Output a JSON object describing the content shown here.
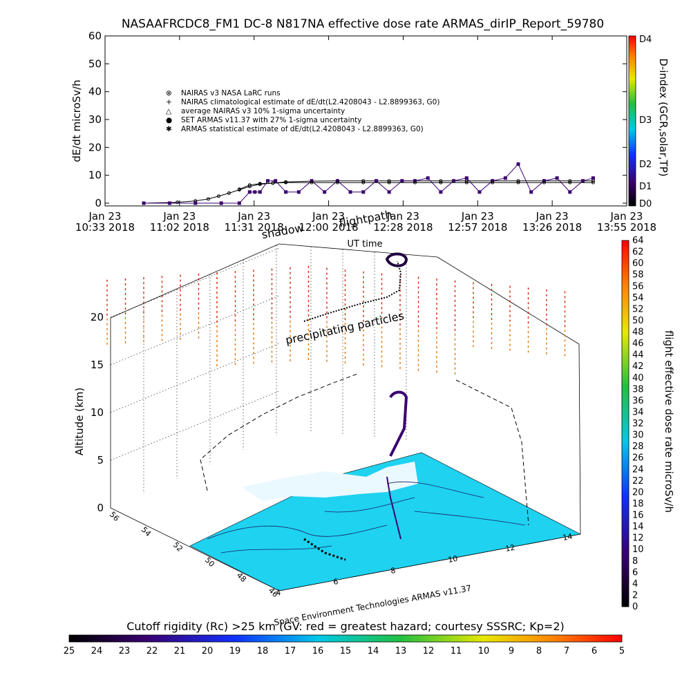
{
  "title": "NASAAFRCDC8_FM1 DC-8    N817NA effective dose rate ARMAS_dirIP_Report_59780",
  "chart_data": [
    {
      "type": "scatter",
      "ylabel": "dE/dt microSv/h",
      "xlabel": "UT time",
      "ylim": [
        0,
        60
      ],
      "yticks": [
        "0",
        "10",
        "20",
        "30",
        "40",
        "50",
        "60"
      ],
      "xticks": [
        {
          "top": "Jan 23",
          "bottom": "10:33 2018"
        },
        {
          "top": "Jan 23",
          "bottom": "11:02 2018"
        },
        {
          "top": "Jan 23",
          "bottom": "11:31 2018"
        },
        {
          "top": "Jan 23",
          "bottom": "12:00 2018"
        },
        {
          "top": "Jan 23",
          "bottom": "12:28 2018"
        },
        {
          "top": "Jan 23",
          "bottom": "12:57 2018"
        },
        {
          "top": "Jan 23",
          "bottom": "13:26 2018"
        },
        {
          "top": "Jan 23",
          "bottom": "13:55 2018"
        }
      ],
      "xrange_minutes": [
        0,
        202
      ],
      "legend_placement": "upper-left",
      "legend": [
        "NAIRAS v3 NASA LaRC runs",
        "NAIRAS climatological estimate of dE/dt(L2.4208043 - L2.8899363, G0)",
        "average NAIRAS v3 10% 1-sigma uncertainty",
        "SET ARMAS v11.37 with 27% 1-sigma uncertainty",
        "ARMAS statistical estimate of dE/dt(L2.4208043 - L2.8899363, G0)"
      ],
      "series": [
        {
          "name": "NAIRAS v3 NASA LaRC runs",
          "color": "#000000",
          "x": [
            15,
            28,
            35,
            40,
            44,
            48,
            52,
            56,
            60,
            65,
            70,
            80,
            90,
            100,
            110,
            120,
            130,
            140,
            150,
            160,
            170,
            180,
            189
          ],
          "y": [
            0,
            0.3,
            0.8,
            1.5,
            2.5,
            3.6,
            4.8,
            6.0,
            6.8,
            7.2,
            7.6,
            7.9,
            8.0,
            8.0,
            8.0,
            8.0,
            8.0,
            8.0,
            8.0,
            8.0,
            8.0,
            8.0,
            8.0
          ]
        },
        {
          "name": "SET ARMAS v11.37 with 27% 1-sigma uncertainty",
          "color": "#3a0070",
          "x": [
            15,
            25,
            35,
            45,
            52,
            56,
            58,
            60,
            63,
            66,
            70,
            75,
            80,
            85,
            90,
            95,
            100,
            105,
            110,
            115,
            120,
            125,
            130,
            135,
            140,
            145,
            150,
            155,
            160,
            165,
            170,
            175,
            180,
            185,
            189
          ],
          "y": [
            0,
            0,
            0,
            0,
            0,
            4,
            4,
            4,
            8,
            8,
            4,
            4,
            8,
            4,
            8,
            4,
            4,
            8,
            4,
            8,
            8,
            9,
            4,
            8,
            9,
            4,
            8,
            9,
            14,
            4,
            8,
            9,
            4,
            8,
            9
          ]
        },
        {
          "name": "ARMAS statistical estimate of dE/dt(L2.4208043 - L2.8899363, G0)",
          "color": "#000000",
          "x": [
            52,
            56,
            60,
            65,
            70,
            80,
            90,
            100,
            110,
            120,
            130,
            140,
            150,
            160,
            170,
            180,
            189
          ],
          "y": [
            5,
            6.5,
            7,
            7.2,
            7.4,
            7.4,
            7.4,
            7.4,
            7.4,
            7.4,
            7.4,
            7.4,
            7.4,
            7.4,
            7.4,
            7.4,
            7.4
          ]
        }
      ],
      "dindex": {
        "label": "D-index (GCR,solar,TP)",
        "ticks": [
          "D0",
          "D1",
          "D2",
          "D3",
          "D4"
        ],
        "colors": [
          "#000000",
          "#3a0070",
          "#1030ff",
          "#00c8e8",
          "#20c040",
          "#e8e800",
          "#ff8000",
          "#ff0000"
        ]
      }
    },
    {
      "type": "scatter3d",
      "zlabel": "Altitude (km)",
      "zlim": [
        0,
        20
      ],
      "zticks": [
        "0",
        "5",
        "10",
        "15",
        "20"
      ],
      "lat_ticks": [
        "46",
        "48",
        "50",
        "52",
        "54",
        "56"
      ],
      "lon_ticks": [
        "4",
        "6",
        "8",
        "10",
        "12",
        "14"
      ],
      "annotations": [
        "flightpath",
        "shadow",
        "precipitating particles"
      ],
      "credit": "Space Environment Technologies ARMAS v11.37",
      "colorbar": {
        "label": "flight effective dose rate microSv/h",
        "range": [
          0,
          64
        ],
        "ticks": [
          "0",
          "2",
          "4",
          "6",
          "8",
          "10",
          "12",
          "14",
          "16",
          "18",
          "20",
          "22",
          "24",
          "26",
          "28",
          "30",
          "32",
          "34",
          "36",
          "38",
          "40",
          "42",
          "44",
          "46",
          "48",
          "50",
          "52",
          "54",
          "56",
          "58",
          "60",
          "62",
          "64"
        ]
      }
    },
    {
      "type": "colorbar",
      "title": "Cutoff rigidity (Rc) >25 km (GV: red = greatest hazard; courtesy SSSRC; Kp=2)",
      "ticks": [
        "25",
        "24",
        "23",
        "22",
        "21",
        "20",
        "19",
        "18",
        "17",
        "16",
        "15",
        "14",
        "13",
        "12",
        "11",
        "10",
        "9",
        "8",
        "7",
        "6",
        "5"
      ]
    }
  ],
  "colors": {
    "rainbow": [
      "#000000",
      "#3a0070",
      "#1030ff",
      "#00c8e8",
      "#20c040",
      "#e8e800",
      "#ff8000",
      "#ff0000"
    ],
    "map_fill": "#1ed2f0",
    "land_light": "#eaf8ff"
  }
}
